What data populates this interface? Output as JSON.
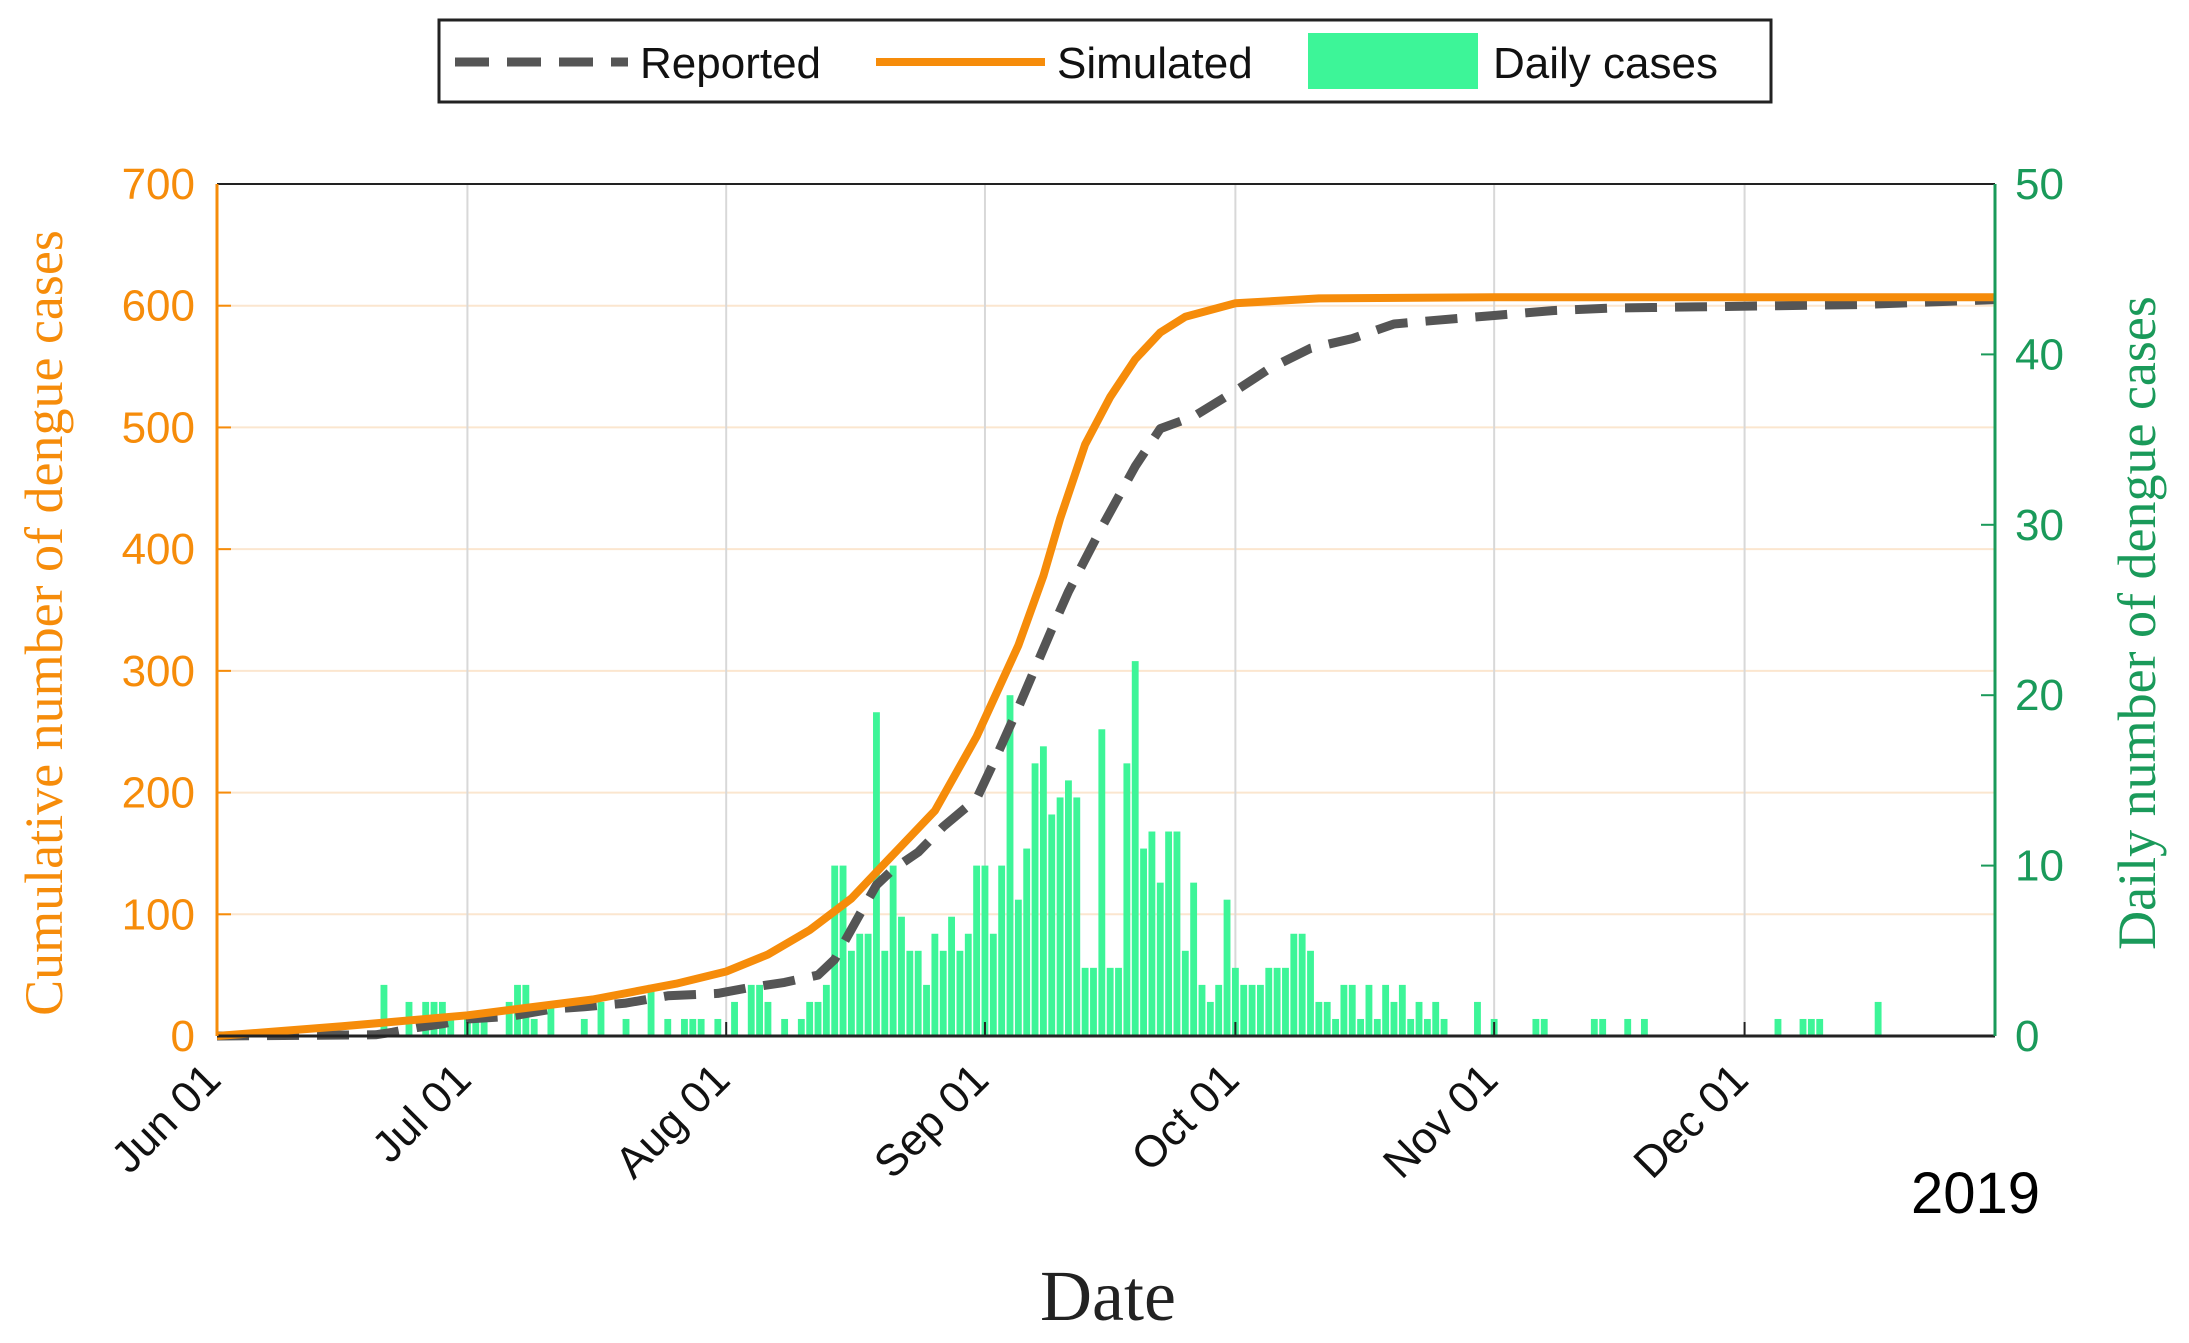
{
  "chart_data": {
    "type": "bar+line",
    "title": "",
    "xlabel": "Date",
    "ylabel_left": "Cumulative number of dengue cases",
    "ylabel_right": "Daily number of dengue cases",
    "year_label": "2019",
    "x_start": "2019-06-01",
    "x_end": "2019-12-31",
    "x_ticks": [
      {
        "date": "2019-06-01",
        "label": "Jun 01"
      },
      {
        "date": "2019-07-01",
        "label": "Jul 01"
      },
      {
        "date": "2019-08-01",
        "label": "Aug 01"
      },
      {
        "date": "2019-09-01",
        "label": "Sep 01"
      },
      {
        "date": "2019-10-01",
        "label": "Oct 01"
      },
      {
        "date": "2019-11-01",
        "label": "Nov 01"
      },
      {
        "date": "2019-12-01",
        "label": "Dec 01"
      }
    ],
    "ylim_left": [
      0,
      700
    ],
    "yticks_left": [
      "0",
      "100",
      "200",
      "300",
      "400",
      "500",
      "600",
      "700"
    ],
    "ylim_right": [
      0,
      50
    ],
    "yticks_right": [
      "0",
      "10",
      "20",
      "30",
      "40",
      "50"
    ],
    "grid": true,
    "legend_position": "top-center",
    "colors": {
      "simulated": "#f68c0a",
      "reported": "#555555",
      "daily": "#3df598",
      "left_axis": "#f68c0a",
      "right_axis": "#1a9a5a",
      "grid_vertical": "#d8d8d8",
      "grid_horizontal": "#fbe6cf"
    },
    "series": [
      {
        "name": "Reported",
        "axis": "left",
        "style": "dashed",
        "points": [
          [
            "2019-06-01",
            0
          ],
          [
            "2019-06-20",
            1
          ],
          [
            "2019-06-22",
            3
          ],
          [
            "2019-06-25",
            7
          ],
          [
            "2019-06-28",
            10
          ],
          [
            "2019-07-01",
            14
          ],
          [
            "2019-07-06",
            16
          ],
          [
            "2019-07-11",
            22
          ],
          [
            "2019-07-15",
            24
          ],
          [
            "2019-07-20",
            27
          ],
          [
            "2019-07-25",
            33
          ],
          [
            "2019-07-31",
            35
          ],
          [
            "2019-08-04",
            40
          ],
          [
            "2019-08-08",
            44
          ],
          [
            "2019-08-12",
            50
          ],
          [
            "2019-08-14",
            63
          ],
          [
            "2019-08-17",
            100
          ],
          [
            "2019-08-19",
            124
          ],
          [
            "2019-08-21",
            137
          ],
          [
            "2019-08-24",
            151
          ],
          [
            "2019-08-27",
            172
          ],
          [
            "2019-08-31",
            195
          ],
          [
            "2019-09-02",
            224
          ],
          [
            "2019-09-05",
            270
          ],
          [
            "2019-09-09",
            334
          ],
          [
            "2019-09-11",
            365
          ],
          [
            "2019-09-15",
            418
          ],
          [
            "2019-09-19",
            468
          ],
          [
            "2019-09-22",
            499
          ],
          [
            "2019-09-26",
            509
          ],
          [
            "2019-10-01",
            530
          ],
          [
            "2019-10-05",
            548
          ],
          [
            "2019-10-10",
            565
          ],
          [
            "2019-10-15",
            573
          ],
          [
            "2019-10-20",
            585
          ],
          [
            "2019-10-25",
            588
          ],
          [
            "2019-11-01",
            592
          ],
          [
            "2019-11-08",
            596
          ],
          [
            "2019-11-15",
            598
          ],
          [
            "2019-11-25",
            599
          ],
          [
            "2019-12-05",
            600
          ],
          [
            "2019-12-15",
            601
          ],
          [
            "2019-12-31",
            605
          ]
        ]
      },
      {
        "name": "Simulated",
        "axis": "left",
        "style": "solid",
        "points": [
          [
            "2019-06-01",
            0
          ],
          [
            "2019-06-16",
            8
          ],
          [
            "2019-07-01",
            17
          ],
          [
            "2019-07-16",
            30
          ],
          [
            "2019-07-26",
            43
          ],
          [
            "2019-08-01",
            53
          ],
          [
            "2019-08-06",
            67
          ],
          [
            "2019-08-11",
            87
          ],
          [
            "2019-08-16",
            113
          ],
          [
            "2019-08-21",
            149
          ],
          [
            "2019-08-26",
            185
          ],
          [
            "2019-08-31",
            246
          ],
          [
            "2019-09-05",
            321
          ],
          [
            "2019-09-08",
            378
          ],
          [
            "2019-09-10",
            425
          ],
          [
            "2019-09-13",
            486
          ],
          [
            "2019-09-16",
            525
          ],
          [
            "2019-09-19",
            556
          ],
          [
            "2019-09-22",
            578
          ],
          [
            "2019-09-25",
            591
          ],
          [
            "2019-10-01",
            602
          ],
          [
            "2019-10-11",
            606
          ],
          [
            "2019-11-01",
            607
          ],
          [
            "2019-12-31",
            607
          ]
        ]
      }
    ],
    "bars": {
      "name": "Daily cases",
      "axis": "right",
      "points": [
        [
          "2019-06-21",
          3
        ],
        [
          "2019-06-24",
          2
        ],
        [
          "2019-06-26",
          2
        ],
        [
          "2019-06-27",
          2
        ],
        [
          "2019-06-28",
          2
        ],
        [
          "2019-06-29",
          1
        ],
        [
          "2019-07-01",
          1
        ],
        [
          "2019-07-02",
          1
        ],
        [
          "2019-07-03",
          1
        ],
        [
          "2019-07-06",
          2
        ],
        [
          "2019-07-07",
          3
        ],
        [
          "2019-07-08",
          3
        ],
        [
          "2019-07-09",
          1
        ],
        [
          "2019-07-11",
          2
        ],
        [
          "2019-07-15",
          1
        ],
        [
          "2019-07-17",
          2
        ],
        [
          "2019-07-20",
          1
        ],
        [
          "2019-07-23",
          3
        ],
        [
          "2019-07-25",
          1
        ],
        [
          "2019-07-27",
          1
        ],
        [
          "2019-07-28",
          1
        ],
        [
          "2019-07-29",
          1
        ],
        [
          "2019-07-31",
          1
        ],
        [
          "2019-08-02",
          2
        ],
        [
          "2019-08-04",
          3
        ],
        [
          "2019-08-05",
          3
        ],
        [
          "2019-08-06",
          2
        ],
        [
          "2019-08-08",
          1
        ],
        [
          "2019-08-10",
          1
        ],
        [
          "2019-08-11",
          2
        ],
        [
          "2019-08-12",
          2
        ],
        [
          "2019-08-13",
          3
        ],
        [
          "2019-08-14",
          10
        ],
        [
          "2019-08-15",
          10
        ],
        [
          "2019-08-16",
          5
        ],
        [
          "2019-08-17",
          6
        ],
        [
          "2019-08-18",
          6
        ],
        [
          "2019-08-19",
          19
        ],
        [
          "2019-08-20",
          5
        ],
        [
          "2019-08-21",
          10
        ],
        [
          "2019-08-22",
          7
        ],
        [
          "2019-08-23",
          5
        ],
        [
          "2019-08-24",
          5
        ],
        [
          "2019-08-25",
          3
        ],
        [
          "2019-08-26",
          6
        ],
        [
          "2019-08-27",
          5
        ],
        [
          "2019-08-28",
          7
        ],
        [
          "2019-08-29",
          5
        ],
        [
          "2019-08-30",
          6
        ],
        [
          "2019-08-31",
          10
        ],
        [
          "2019-09-01",
          10
        ],
        [
          "2019-09-02",
          6
        ],
        [
          "2019-09-03",
          10
        ],
        [
          "2019-09-04",
          20
        ],
        [
          "2019-09-05",
          8
        ],
        [
          "2019-09-06",
          11
        ],
        [
          "2019-09-07",
          16
        ],
        [
          "2019-09-08",
          17
        ],
        [
          "2019-09-09",
          13
        ],
        [
          "2019-09-10",
          14
        ],
        [
          "2019-09-11",
          15
        ],
        [
          "2019-09-12",
          14
        ],
        [
          "2019-09-13",
          4
        ],
        [
          "2019-09-14",
          4
        ],
        [
          "2019-09-15",
          18
        ],
        [
          "2019-09-16",
          4
        ],
        [
          "2019-09-17",
          4
        ],
        [
          "2019-09-18",
          16
        ],
        [
          "2019-09-19",
          22
        ],
        [
          "2019-09-20",
          11
        ],
        [
          "2019-09-21",
          12
        ],
        [
          "2019-09-22",
          9
        ],
        [
          "2019-09-23",
          12
        ],
        [
          "2019-09-24",
          12
        ],
        [
          "2019-09-25",
          5
        ],
        [
          "2019-09-26",
          9
        ],
        [
          "2019-09-27",
          3
        ],
        [
          "2019-09-28",
          2
        ],
        [
          "2019-09-29",
          3
        ],
        [
          "2019-09-30",
          8
        ],
        [
          "2019-10-01",
          4
        ],
        [
          "2019-10-02",
          3
        ],
        [
          "2019-10-03",
          3
        ],
        [
          "2019-10-04",
          3
        ],
        [
          "2019-10-05",
          4
        ],
        [
          "2019-10-06",
          4
        ],
        [
          "2019-10-07",
          4
        ],
        [
          "2019-10-08",
          6
        ],
        [
          "2019-10-09",
          6
        ],
        [
          "2019-10-10",
          5
        ],
        [
          "2019-10-11",
          2
        ],
        [
          "2019-10-12",
          2
        ],
        [
          "2019-10-13",
          1
        ],
        [
          "2019-10-14",
          3
        ],
        [
          "2019-10-15",
          3
        ],
        [
          "2019-10-16",
          1
        ],
        [
          "2019-10-17",
          3
        ],
        [
          "2019-10-18",
          1
        ],
        [
          "2019-10-19",
          3
        ],
        [
          "2019-10-20",
          2
        ],
        [
          "2019-10-21",
          3
        ],
        [
          "2019-10-22",
          1
        ],
        [
          "2019-10-23",
          2
        ],
        [
          "2019-10-24",
          1
        ],
        [
          "2019-10-25",
          2
        ],
        [
          "2019-10-26",
          1
        ],
        [
          "2019-10-30",
          2
        ],
        [
          "2019-11-01",
          1
        ],
        [
          "2019-11-06",
          1
        ],
        [
          "2019-11-07",
          1
        ],
        [
          "2019-11-13",
          1
        ],
        [
          "2019-11-14",
          1
        ],
        [
          "2019-11-17",
          1
        ],
        [
          "2019-11-19",
          1
        ],
        [
          "2019-12-05",
          1
        ],
        [
          "2019-12-08",
          1
        ],
        [
          "2019-12-09",
          1
        ],
        [
          "2019-12-10",
          1
        ],
        [
          "2019-12-17",
          2
        ]
      ]
    }
  }
}
